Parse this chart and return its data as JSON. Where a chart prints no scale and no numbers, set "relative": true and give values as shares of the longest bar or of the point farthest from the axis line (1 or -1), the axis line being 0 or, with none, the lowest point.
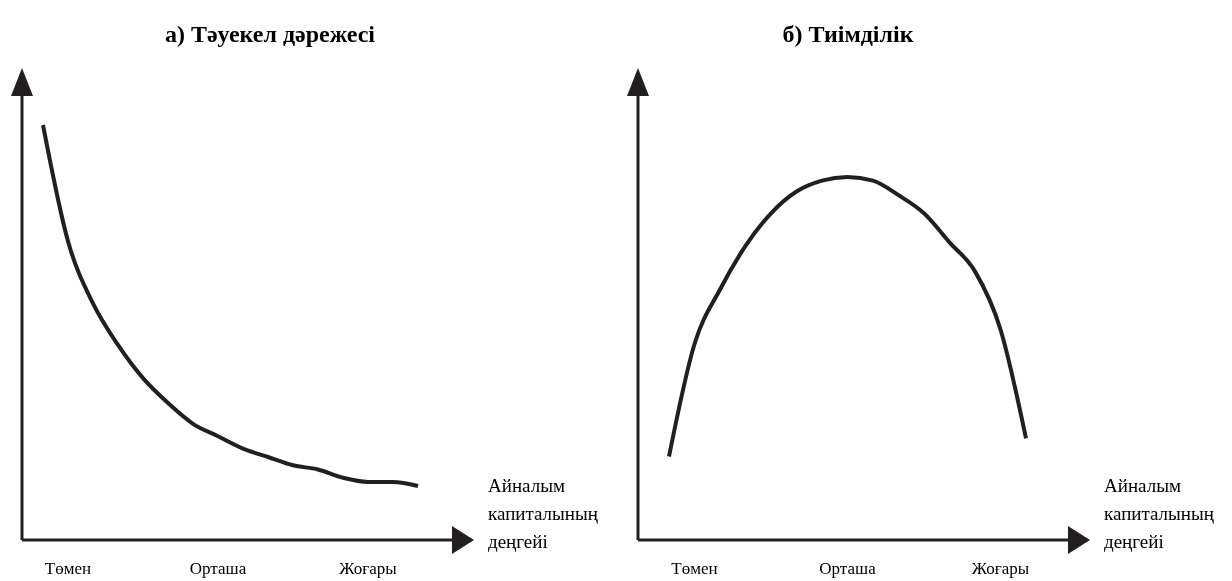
{
  "chart_data": [
    {
      "type": "line",
      "title": "а) Тәуекел дәрежесі",
      "xlabel": "Айналым капиталының деңгейі",
      "relative": true,
      "color": "#231f20",
      "categories": [
        null,
        "Төмен",
        null,
        null,
        null,
        null,
        null,
        "Орташа",
        null,
        null,
        null,
        null,
        null,
        "Жоғары",
        null,
        null
      ],
      "values": [
        1,
        0.72,
        0.57,
        0.47,
        0.39,
        0.33,
        0.28,
        0.25,
        0.22,
        0.2,
        0.18,
        0.17,
        0.15,
        0.14,
        0.14,
        0.13
      ]
    },
    {
      "type": "line",
      "title": "б) Тиімділік",
      "xlabel": "Айналым капиталының деңгейі",
      "relative": true,
      "color": "#231f20",
      "categories": [
        null,
        "Төмен",
        null,
        null,
        null,
        null,
        null,
        "Орташа",
        null,
        null,
        null,
        null,
        null,
        "Жоғары",
        null
      ],
      "values": [
        0.23,
        0.54,
        0.69,
        0.81,
        0.9,
        0.96,
        0.99,
        1,
        0.99,
        0.95,
        0.9,
        0.82,
        0.74,
        0.58,
        0.28
      ]
    }
  ]
}
